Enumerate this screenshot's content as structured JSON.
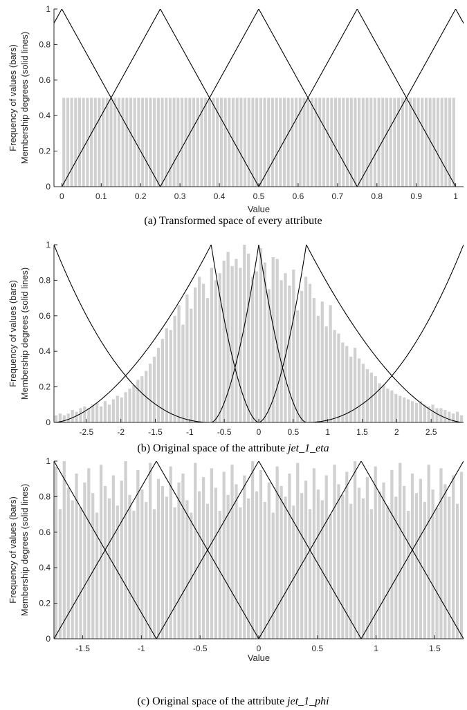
{
  "chart_data": [
    {
      "type": "bar",
      "caption": "(a) Transformed space of every attribute",
      "xlabel": "Value",
      "ylabel_line1": "Frequency of values (bars)",
      "ylabel_line2": "Membership degrees (solid lines)",
      "xlim": [
        -0.02,
        1.02
      ],
      "ylim": [
        0,
        1
      ],
      "xticks": [
        0,
        0.1,
        0.2,
        0.3,
        0.4,
        0.5,
        0.6,
        0.7,
        0.8,
        0.9,
        1
      ],
      "xtick_labels": [
        "0",
        "0.1",
        "0.2",
        "0.3",
        "0.4",
        "0.5",
        "0.6",
        "0.7",
        "0.8",
        "0.9",
        "1"
      ],
      "yticks": [
        0,
        0.2,
        0.4,
        0.6,
        0.8,
        1
      ],
      "ytick_labels": [
        "0",
        "0.2",
        "0.4",
        "0.6",
        "0.8",
        "1"
      ],
      "bars": {
        "start": 0,
        "width": 0.01,
        "values": [
          0.5,
          0.5,
          0.5,
          0.5,
          0.5,
          0.5,
          0.5,
          0.5,
          0.5,
          0.5,
          0.5,
          0.5,
          0.5,
          0.5,
          0.5,
          0.5,
          0.5,
          0.5,
          0.5,
          0.5,
          0.5,
          0.5,
          0.5,
          0.5,
          0.5,
          0.5,
          0.5,
          0.5,
          0.5,
          0.5,
          0.5,
          0.5,
          0.5,
          0.5,
          0.5,
          0.5,
          0.5,
          0.5,
          0.5,
          0.5,
          0.5,
          0.5,
          0.5,
          0.5,
          0.5,
          0.5,
          0.5,
          0.5,
          0.5,
          0.5,
          0.5,
          0.5,
          0.5,
          0.5,
          0.5,
          0.5,
          0.5,
          0.5,
          0.5,
          0.5,
          0.5,
          0.5,
          0.5,
          0.5,
          0.5,
          0.5,
          0.5,
          0.5,
          0.5,
          0.5,
          0.5,
          0.5,
          0.5,
          0.5,
          0.5,
          0.5,
          0.5,
          0.5,
          0.5,
          0.5,
          0.5,
          0.5,
          0.5,
          0.5,
          0.5,
          0.5,
          0.5,
          0.5,
          0.5,
          0.5,
          0.5,
          0.5,
          0.5,
          0.5,
          0.5,
          0.5,
          0.5,
          0.5,
          0.5,
          0.5
        ],
        "color": "#d0d0d0"
      },
      "membership_functions": [
        {
          "x": [
            -0.25,
            0,
            0.25
          ],
          "y": [
            0,
            1,
            0
          ]
        },
        {
          "x": [
            0,
            0.25,
            0.5
          ],
          "y": [
            0,
            1,
            0
          ]
        },
        {
          "x": [
            0.25,
            0.5,
            0.75
          ],
          "y": [
            0,
            1,
            0
          ]
        },
        {
          "x": [
            0.5,
            0.75,
            1
          ],
          "y": [
            0,
            1,
            0
          ]
        },
        {
          "x": [
            0.75,
            1,
            1.25
          ],
          "y": [
            0,
            1,
            0
          ]
        }
      ]
    },
    {
      "type": "bar",
      "caption": "(b) Original space of the attribute ",
      "caption_italic": "jet_1_eta",
      "xlabel": "",
      "ylabel_line1": "Frequency of values (bars)",
      "ylabel_line2": "Membership degrees (solid lines)",
      "xlim": [
        -2.97,
        2.97
      ],
      "ylim": [
        0,
        1
      ],
      "xticks": [
        -2.5,
        -2,
        -1.5,
        -1,
        -0.5,
        0,
        0.5,
        1,
        1.5,
        2,
        2.5
      ],
      "xtick_labels": [
        "-2.5",
        "-2",
        "-1.5",
        "-1",
        "-0.5",
        "0",
        "0.5",
        "1",
        "1.5",
        "2",
        "2.5"
      ],
      "yticks": [
        0,
        0.2,
        0.4,
        0.6,
        0.8,
        1
      ],
      "ytick_labels": [
        "0",
        "0.2",
        "0.4",
        "0.6",
        "0.8",
        "1"
      ],
      "bars": {
        "start": -2.97,
        "width": 0.0594,
        "values": [
          0.04,
          0.05,
          0.04,
          0.05,
          0.07,
          0.06,
          0.08,
          0.09,
          0.08,
          0.1,
          0.11,
          0.09,
          0.12,
          0.1,
          0.13,
          0.15,
          0.14,
          0.17,
          0.19,
          0.21,
          0.24,
          0.26,
          0.29,
          0.33,
          0.37,
          0.42,
          0.47,
          0.53,
          0.52,
          0.6,
          0.66,
          0.55,
          0.72,
          0.64,
          0.76,
          0.82,
          0.78,
          0.7,
          0.87,
          0.8,
          0.84,
          0.91,
          0.96,
          0.88,
          0.92,
          0.87,
          1.0,
          0.95,
          0.82,
          0.85,
          0.98,
          0.9,
          0.75,
          0.93,
          0.92,
          0.8,
          0.84,
          0.77,
          0.86,
          0.63,
          0.74,
          0.82,
          0.78,
          0.7,
          0.6,
          0.68,
          0.54,
          0.66,
          0.52,
          0.5,
          0.45,
          0.43,
          0.37,
          0.42,
          0.36,
          0.33,
          0.3,
          0.28,
          0.26,
          0.22,
          0.21,
          0.19,
          0.18,
          0.16,
          0.15,
          0.14,
          0.13,
          0.12,
          0.11,
          0.12,
          0.1,
          0.09,
          0.1,
          0.08,
          0.08,
          0.07,
          0.06,
          0.05,
          0.06,
          0.04
        ],
        "color": "#d0d0d0"
      },
      "membership_functions": [
        {
          "shape": "left-shoulder",
          "knots": [
            -2.97,
            -1.5,
            -0.69
          ],
          "y": [
            1,
            0.38,
            0
          ]
        },
        {
          "x": [
            -2.97,
            -0.69,
            0
          ],
          "y": [
            0,
            1,
            0
          ],
          "shape": "convex-triangle"
        },
        {
          "x": [
            -0.69,
            0,
            0.69
          ],
          "y": [
            0,
            1,
            0
          ],
          "shape": "convex-triangle"
        },
        {
          "x": [
            0,
            0.69,
            2.97
          ],
          "y": [
            0,
            1,
            0
          ],
          "shape": "convex-triangle"
        },
        {
          "shape": "right-shoulder",
          "knots": [
            0.69,
            1.5,
            2.97
          ],
          "y": [
            0,
            0.38,
            1
          ]
        }
      ]
    },
    {
      "type": "bar",
      "caption": "(c) Original space of the attribute ",
      "caption_italic": "jet_1_phi",
      "xlabel": "Value",
      "ylabel_line1": "Frequency of values (bars)",
      "ylabel_line2": "Membership degrees (solid lines)",
      "xlim": [
        -1.745,
        1.745
      ],
      "ylim": [
        0,
        1
      ],
      "xticks": [
        -1.5,
        -1,
        -0.5,
        0,
        0.5,
        1,
        1.5
      ],
      "xtick_labels": [
        "-1.5",
        "-1",
        "-0.5",
        "0",
        "0.5",
        "1",
        "1.5"
      ],
      "yticks": [
        0,
        0.2,
        0.4,
        0.6,
        0.8,
        1
      ],
      "ytick_labels": [
        "0",
        "0.2",
        "0.4",
        "0.6",
        "0.8",
        "1"
      ],
      "bars": {
        "start": -1.745,
        "width": 0.0349,
        "values": [
          0.97,
          0.73,
          1.0,
          0.85,
          0.78,
          0.93,
          0.74,
          0.88,
          0.96,
          0.82,
          0.71,
          0.98,
          0.86,
          0.79,
          0.92,
          0.75,
          0.89,
          1.0,
          0.81,
          0.72,
          0.95,
          0.84,
          0.77,
          0.99,
          0.73,
          0.9,
          0.86,
          0.8,
          0.97,
          0.74,
          0.88,
          0.93,
          0.78,
          0.71,
          0.99,
          0.83,
          0.91,
          0.76,
          0.96,
          0.85,
          0.72,
          0.94,
          0.81,
          0.98,
          0.87,
          0.74,
          0.92,
          0.79,
          1.0,
          0.83,
          0.95,
          0.77,
          0.88,
          0.71,
          0.97,
          0.86,
          0.8,
          0.93,
          0.75,
          0.99,
          0.82,
          0.89,
          0.73,
          0.96,
          0.84,
          0.78,
          0.92,
          0.7,
          0.98,
          0.87,
          0.81,
          0.94,
          0.76,
          1.0,
          0.85,
          0.79,
          0.91,
          0.73,
          0.97,
          0.83,
          0.88,
          0.75,
          0.95,
          0.8,
          0.99,
          0.86,
          0.72,
          0.93,
          0.82,
          0.9,
          0.77,
          0.98,
          0.84,
          0.74,
          0.96,
          0.87,
          0.8,
          0.92,
          0.76,
          0.94
        ],
        "color": "#d0d0d0"
      },
      "membership_functions": [
        {
          "x": [
            -2.6175,
            -1.745,
            -0.8725
          ],
          "y": [
            0,
            1,
            0
          ]
        },
        {
          "x": [
            -1.745,
            -0.8725,
            0
          ],
          "y": [
            0,
            1,
            0
          ]
        },
        {
          "x": [
            -0.8725,
            0,
            0.8725
          ],
          "y": [
            0,
            1,
            0
          ]
        },
        {
          "x": [
            0,
            0.8725,
            1.745
          ],
          "y": [
            0,
            1,
            0
          ]
        },
        {
          "x": [
            0.8725,
            1.745,
            2.6175
          ],
          "y": [
            0,
            1,
            0
          ]
        }
      ]
    }
  ]
}
